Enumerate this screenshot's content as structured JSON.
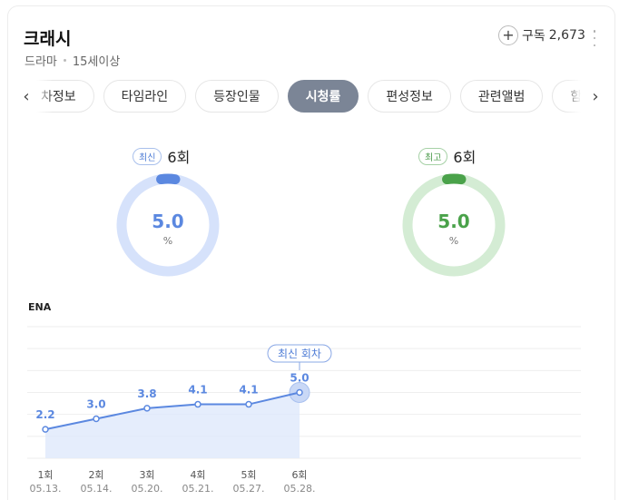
{
  "program": {
    "title": "크래시",
    "genre": "드라마",
    "rating": "15세이상"
  },
  "subscribe": {
    "label": "구독",
    "count": "2,673",
    "icon": "plus-circle-icon"
  },
  "tabs": [
    {
      "label": "차정보",
      "active": false
    },
    {
      "label": "타임라인",
      "active": false
    },
    {
      "label": "등장인물",
      "active": false
    },
    {
      "label": "시청률",
      "active": true
    },
    {
      "label": "편성정보",
      "active": false
    },
    {
      "label": "관련앨범",
      "active": false
    },
    {
      "label": "함께 볼",
      "active": false
    }
  ],
  "summary": {
    "latest": {
      "badge": "최신",
      "episode": "6회",
      "value": "5.0",
      "unit": "%",
      "fraction": 0.05,
      "color": "#5b88e0",
      "track": "#d6e2fb"
    },
    "best": {
      "badge": "최고",
      "episode": "6회",
      "value": "5.0",
      "unit": "%",
      "fraction": 0.05,
      "color": "#4aa24a",
      "track": "#d4ecd4"
    }
  },
  "network": "ENA",
  "chart_data": {
    "type": "area",
    "categories": [
      "1회",
      "2회",
      "3회",
      "4회",
      "5회",
      "6회"
    ],
    "dates": [
      "05.13.",
      "05.14.",
      "05.20.",
      "05.21.",
      "05.27.",
      "05.28."
    ],
    "values": [
      2.2,
      3.0,
      3.8,
      4.1,
      4.1,
      5.0
    ],
    "value_labels": [
      "2.2",
      "3.0",
      "3.8",
      "4.1",
      "4.1",
      "5.0"
    ],
    "annotation": {
      "label": "최신 회차",
      "index": 5
    },
    "ylim": [
      0,
      10
    ],
    "grid": true,
    "color": "#5b88e0"
  }
}
